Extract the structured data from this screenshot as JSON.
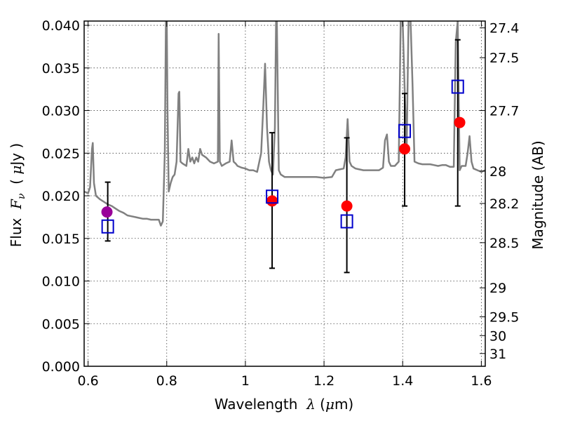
{
  "chart_data": {
    "type": "scatter",
    "xlabel": {
      "prefix": "Wavelength  ",
      "symbol": "λ",
      "suffix_open": " (",
      "mu": "μ",
      "unit": "m)"
    },
    "ylabel": {
      "prefix": "Flux  ",
      "symbol": "F",
      "subscript": "ν",
      "suffix_open": "  ( ",
      "mu": "μ",
      "unit": "Jy )"
    },
    "y2label": "Magnitude (AB)",
    "xlim": [
      0.59,
      1.61
    ],
    "ylim": [
      0.0,
      0.0405
    ],
    "grid": true,
    "x_ticks": [
      {
        "value": 0.6,
        "label": "0.6"
      },
      {
        "value": 0.8,
        "label": "0.8"
      },
      {
        "value": 1.0,
        "label": "1"
      },
      {
        "value": 1.2,
        "label": "1.2"
      },
      {
        "value": 1.4,
        "label": "1.4"
      },
      {
        "value": 1.6,
        "label": "1.6"
      }
    ],
    "y_ticks": [
      {
        "value": 0.0,
        "label": "0.000"
      },
      {
        "value": 0.005,
        "label": "0.005"
      },
      {
        "value": 0.01,
        "label": "0.010"
      },
      {
        "value": 0.015,
        "label": "0.015"
      },
      {
        "value": 0.02,
        "label": "0.020"
      },
      {
        "value": 0.025,
        "label": "0.025"
      },
      {
        "value": 0.03,
        "label": "0.030"
      },
      {
        "value": 0.035,
        "label": "0.035"
      },
      {
        "value": 0.04,
        "label": "0.040"
      }
    ],
    "y2_ticks": [
      {
        "flux": 0.0397,
        "label": "27.4"
      },
      {
        "flux": 0.0362,
        "label": "27.5"
      },
      {
        "flux": 0.03,
        "label": "27.7"
      },
      {
        "flux": 0.0229,
        "label": "28"
      },
      {
        "flux": 0.0191,
        "label": "28.2"
      },
      {
        "flux": 0.0145,
        "label": "28.5"
      },
      {
        "flux": 0.0092,
        "label": "29"
      },
      {
        "flux": 0.0058,
        "label": "29.5"
      },
      {
        "flux": 0.0036,
        "label": "30"
      },
      {
        "flux": 0.0015,
        "label": "31"
      }
    ],
    "series": [
      {
        "marker": "line",
        "color": "#808080",
        "x": [
          0.59,
          0.6,
          0.605,
          0.61,
          0.612,
          0.615,
          0.62,
          0.63,
          0.64,
          0.65,
          0.66,
          0.67,
          0.68,
          0.69,
          0.7,
          0.71,
          0.72,
          0.73,
          0.74,
          0.75,
          0.76,
          0.77,
          0.78,
          0.785,
          0.79,
          0.795,
          0.798,
          0.8,
          0.802,
          0.805,
          0.81,
          0.815,
          0.82,
          0.825,
          0.83,
          0.832,
          0.835,
          0.84,
          0.85,
          0.855,
          0.86,
          0.865,
          0.87,
          0.875,
          0.88,
          0.885,
          0.89,
          0.9,
          0.91,
          0.92,
          0.93,
          0.932,
          0.935,
          0.94,
          0.95,
          0.96,
          0.965,
          0.97,
          0.975,
          0.98,
          0.99,
          1.0,
          1.01,
          1.02,
          1.03,
          1.04,
          1.045,
          1.05,
          1.055,
          1.06,
          1.065,
          1.07,
          1.075,
          1.078,
          1.08,
          1.085,
          1.09,
          1.1,
          1.12,
          1.14,
          1.16,
          1.18,
          1.2,
          1.22,
          1.23,
          1.24,
          1.25,
          1.255,
          1.26,
          1.265,
          1.27,
          1.28,
          1.3,
          1.32,
          1.34,
          1.35,
          1.355,
          1.36,
          1.365,
          1.37,
          1.38,
          1.39,
          1.395,
          1.4,
          1.41,
          1.415,
          1.42,
          1.425,
          1.43,
          1.44,
          1.45,
          1.46,
          1.47,
          1.48,
          1.49,
          1.5,
          1.51,
          1.52,
          1.53,
          1.535,
          1.54,
          1.545,
          1.55,
          1.56,
          1.565,
          1.57,
          1.575,
          1.58,
          1.59,
          1.6,
          1.61
        ],
        "y": [
          0.0205,
          0.0203,
          0.021,
          0.0255,
          0.0262,
          0.0215,
          0.02,
          0.0196,
          0.0193,
          0.019,
          0.0188,
          0.0185,
          0.0182,
          0.018,
          0.0177,
          0.0176,
          0.0175,
          0.0174,
          0.0173,
          0.0173,
          0.0172,
          0.0172,
          0.0172,
          0.0165,
          0.017,
          0.025,
          0.0405,
          0.0405,
          0.03,
          0.0205,
          0.0215,
          0.0222,
          0.0225,
          0.024,
          0.032,
          0.0322,
          0.024,
          0.0238,
          0.0235,
          0.0255,
          0.024,
          0.0245,
          0.0238,
          0.0245,
          0.024,
          0.0255,
          0.0248,
          0.0245,
          0.024,
          0.0238,
          0.024,
          0.039,
          0.024,
          0.0235,
          0.0238,
          0.024,
          0.0265,
          0.024,
          0.0238,
          0.0235,
          0.0233,
          0.0232,
          0.023,
          0.023,
          0.0228,
          0.025,
          0.03,
          0.0355,
          0.028,
          0.024,
          0.023,
          0.0225,
          0.028,
          0.0405,
          0.0405,
          0.023,
          0.0225,
          0.0222,
          0.0222,
          0.0222,
          0.0222,
          0.0222,
          0.0221,
          0.0222,
          0.023,
          0.0231,
          0.0232,
          0.0245,
          0.029,
          0.024,
          0.0235,
          0.0232,
          0.023,
          0.023,
          0.023,
          0.0233,
          0.0265,
          0.0272,
          0.024,
          0.0235,
          0.0235,
          0.024,
          0.0405,
          0.0405,
          0.025,
          0.0405,
          0.0405,
          0.033,
          0.024,
          0.0238,
          0.0237,
          0.0237,
          0.0237,
          0.0236,
          0.0235,
          0.0236,
          0.0236,
          0.0234,
          0.0234,
          0.038,
          0.0405,
          0.023,
          0.0235,
          0.0235,
          0.025,
          0.027,
          0.024,
          0.0232,
          0.023,
          0.0228,
          0.023
        ]
      },
      {
        "marker": "circle",
        "color": "#990099",
        "x": [
          0.648
        ],
        "y": [
          0.0181
        ]
      },
      {
        "marker": "circle",
        "color": "#ff0000",
        "x": [
          1.068,
          1.258,
          1.405,
          1.545
        ],
        "y": [
          0.0194,
          0.0188,
          0.0255,
          0.0286
        ]
      },
      {
        "marker": "square-open",
        "color": "#0000cc",
        "x": [
          0.65,
          1.068,
          1.258,
          1.405,
          1.54
        ],
        "y": [
          0.0164,
          0.0199,
          0.017,
          0.0276,
          0.0328
        ],
        "yerr_low": [
          0.0147,
          0.0115,
          0.011,
          0.0188,
          0.0188
        ],
        "yerr_high": [
          0.0216,
          0.0274,
          0.0268,
          0.032,
          0.0383
        ]
      }
    ]
  }
}
